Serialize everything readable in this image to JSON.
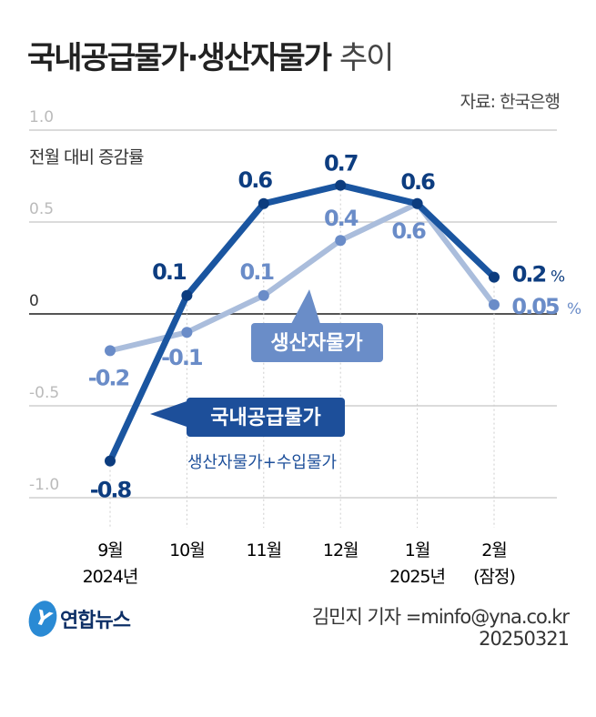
{
  "header": {
    "title_bold": "국내공급물가·생산자물가",
    "title_light": "추이",
    "source": "자료: 한국은행"
  },
  "footer": {
    "logo_text": "연합뉴스",
    "logo_mark": "Y",
    "byline": "김민지 기자 =minfo@yna.co.kr",
    "date": "20250321"
  },
  "chart_data": {
    "type": "line",
    "title": "국내공급물가·생산자물가 추이",
    "ylabel": "전월 대비 증감률",
    "ylim": [
      -1.0,
      1.0
    ],
    "yticks": [
      1.0,
      0.5,
      0,
      -0.5,
      -1.0
    ],
    "ytick_labels": [
      "1.0",
      "0.5",
      "0",
      "-0.5",
      "-1.0"
    ],
    "categories": [
      "9월",
      "10월",
      "11월",
      "12월",
      "1월",
      "2월"
    ],
    "category_sub": [
      "2024년",
      "",
      "",
      "",
      "2025년",
      "(잠정)"
    ],
    "unit": "%",
    "series": [
      {
        "name": "국내공급물가",
        "note": "생산자물가+수입물가",
        "color": "#1a55a0",
        "dot": "#0c3c7e",
        "label_color": "#0d3d80",
        "values": [
          -0.8,
          0.1,
          0.6,
          0.7,
          0.6,
          0.2
        ],
        "labels": [
          "-0.8",
          "0.1",
          "0.6",
          "0.7",
          "0.6",
          "0.2"
        ]
      },
      {
        "name": "생산자물가",
        "color": "#aabddc",
        "dot": "#6a8cc8",
        "label_color": "#6a8cc8",
        "values": [
          -0.2,
          -0.1,
          0.1,
          0.4,
          0.6,
          0.05
        ],
        "labels": [
          "-0.2",
          "-0.1",
          "0.1",
          "0.4",
          "0.6",
          "0.05"
        ]
      }
    ]
  }
}
